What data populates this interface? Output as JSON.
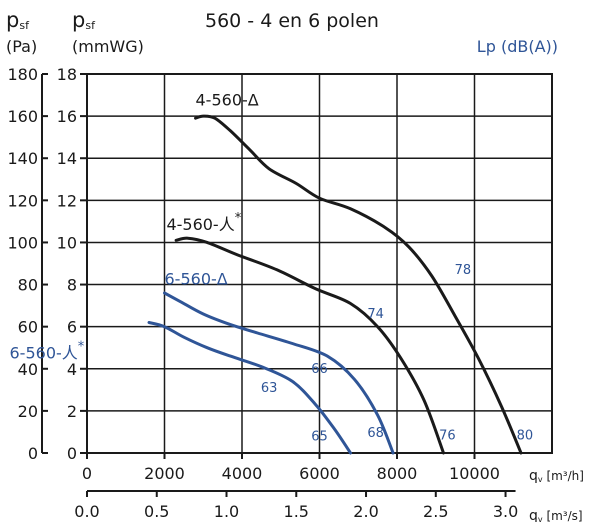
{
  "chart_data": {
    "type": "line",
    "title": "560 - 4 en 6 polen",
    "left_axis": {
      "symbol_main": "p",
      "symbol_sub": "sf",
      "unit": "(Pa)",
      "ticks": [
        "0",
        "20",
        "40",
        "60",
        "80",
        "100",
        "120",
        "140",
        "160",
        "180"
      ],
      "range": [
        0,
        180
      ]
    },
    "y_axis": {
      "symbol_main": "p",
      "symbol_sub": "sf",
      "unit": "(mmWG)",
      "ticks": [
        "0",
        "2",
        "4",
        "6",
        "8",
        "10",
        "12",
        "14",
        "16",
        "18"
      ],
      "range": [
        0,
        18
      ]
    },
    "x_axis": {
      "label_main": "q",
      "label_sub": "v",
      "label_unit": " [m³/h]",
      "ticks": [
        "0",
        "2000",
        "4000",
        "6000",
        "8000",
        "10000"
      ],
      "range": [
        0,
        12000
      ]
    },
    "x2_axis": {
      "label_main": "q",
      "label_sub": "v",
      "label_unit": " [m³/s]",
      "ticks": [
        "0.0",
        "0.5",
        "1.0",
        "1.5",
        "2.0",
        "2.5",
        "3.0"
      ],
      "range": [
        0,
        3.333
      ]
    },
    "lp_label": "Lp (dB(A))",
    "grid": true,
    "colors": {
      "black_curve": "#1a1a1a",
      "blue_curve": "#2f5597",
      "axis": "#1a1a1a"
    },
    "series": [
      {
        "name": "4-560-Δ",
        "color": "#1a1a1a",
        "points": [
          [
            2800,
            15.9
          ],
          [
            3000,
            16.0
          ],
          [
            3300,
            15.9
          ],
          [
            3700,
            15.3
          ],
          [
            4200,
            14.4
          ],
          [
            4700,
            13.5
          ],
          [
            5400,
            12.8
          ],
          [
            6000,
            12.1
          ],
          [
            6800,
            11.6
          ],
          [
            7700,
            10.7
          ],
          [
            8300,
            9.8
          ],
          [
            8900,
            8.4
          ],
          [
            9500,
            6.5
          ],
          [
            10100,
            4.5
          ],
          [
            10700,
            2.2
          ],
          [
            11200,
            0
          ]
        ]
      },
      {
        "name": "4-560-人*",
        "color": "#1a1a1a",
        "points": [
          [
            2300,
            10.1
          ],
          [
            2600,
            10.2
          ],
          [
            3100,
            10.0
          ],
          [
            3900,
            9.4
          ],
          [
            4900,
            8.7
          ],
          [
            5900,
            7.8
          ],
          [
            6800,
            7.1
          ],
          [
            7500,
            6.0
          ],
          [
            8100,
            4.5
          ],
          [
            8700,
            2.5
          ],
          [
            9200,
            0
          ]
        ]
      },
      {
        "name": "6-560-Δ",
        "color": "#2f5597",
        "points": [
          [
            2000,
            7.6
          ],
          [
            2400,
            7.2
          ],
          [
            3000,
            6.6
          ],
          [
            3700,
            6.1
          ],
          [
            4400,
            5.7
          ],
          [
            5300,
            5.2
          ],
          [
            6200,
            4.6
          ],
          [
            6900,
            3.5
          ],
          [
            7500,
            1.8
          ],
          [
            7900,
            0
          ]
        ]
      },
      {
        "name": "6-560-人*",
        "color": "#2f5597",
        "points": [
          [
            1600,
            6.2
          ],
          [
            2000,
            6.0
          ],
          [
            2500,
            5.5
          ],
          [
            3100,
            5.0
          ],
          [
            3700,
            4.6
          ],
          [
            4500,
            4.1
          ],
          [
            5300,
            3.4
          ],
          [
            5900,
            2.3
          ],
          [
            6400,
            1.1
          ],
          [
            6800,
            0
          ]
        ]
      }
    ],
    "dba_labels": [
      {
        "text": "78",
        "x": 9700,
        "y": 8.5,
        "color": "#2f5597"
      },
      {
        "text": "74",
        "x": 7450,
        "y": 6.4,
        "color": "#2f5597"
      },
      {
        "text": "66",
        "x": 6000,
        "y": 3.8,
        "color": "#2f5597"
      },
      {
        "text": "63",
        "x": 4700,
        "y": 2.9,
        "color": "#2f5597"
      },
      {
        "text": "65",
        "x": 6000,
        "y": 0.6,
        "color": "#2f5597"
      },
      {
        "text": "68",
        "x": 7450,
        "y": 0.75,
        "color": "#2f5597"
      },
      {
        "text": "76",
        "x": 9300,
        "y": 0.65,
        "color": "#2f5597"
      },
      {
        "text": "80",
        "x": 11300,
        "y": 0.65,
        "color": "#2f5597"
      }
    ],
    "curve_labels": [
      {
        "prefix": "4-560-",
        "symbol": "Δ",
        "star": "",
        "x": 2800,
        "y": 16.5,
        "color": "#1a1a1a"
      },
      {
        "prefix": "4-560-",
        "symbol": "人",
        "star": "*",
        "x": 2050,
        "y": 10.6,
        "color": "#1a1a1a"
      },
      {
        "prefix": "6-560-",
        "symbol": "Δ",
        "star": "",
        "x": 2000,
        "y": 8.0,
        "color": "#2f5597"
      },
      {
        "prefix": "6-560-",
        "symbol": "人",
        "star": "*",
        "x": -2000,
        "y": 4.5,
        "color": "#2f5597"
      }
    ]
  }
}
